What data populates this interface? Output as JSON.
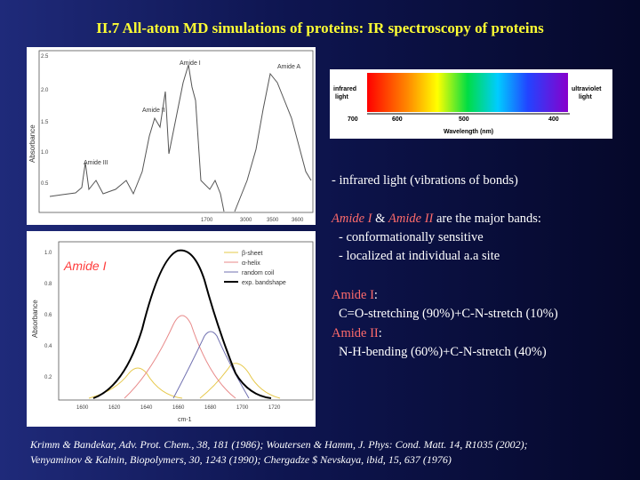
{
  "title": "II.7 All-atom MD simulations of proteins: IR spectroscopy of proteins",
  "spectrum": {
    "left_label": [
      "infrared",
      "light"
    ],
    "right_label": [
      "ultraviolet",
      "light"
    ],
    "ticks": [
      "700",
      "600",
      "500",
      "400"
    ],
    "axis_label": "Wavelength (nm)"
  },
  "chart_top": {
    "ylabel": "Absorbance",
    "yticks": [
      "2.5",
      "2.0",
      "1.5",
      "1.0",
      "0.5"
    ],
    "xticks": [
      "1700",
      "3000",
      "3500",
      "3600"
    ],
    "peak_labels": [
      "Amide I",
      "Amide A",
      "Amide II",
      "Amide III"
    ]
  },
  "chart_bottom": {
    "ylabel": "Absorbance",
    "xlabel": "cm-1",
    "yticks": [
      "1.0",
      "0.8",
      "0.6",
      "0.4",
      "0.2"
    ],
    "xticks": [
      "1600",
      "1620",
      "1640",
      "1660",
      "1680",
      "1700",
      "1720"
    ],
    "overlay_label": "Amide I",
    "legend": [
      "β-sheet",
      "α-helix",
      "random coil",
      "exp. bandshape"
    ]
  },
  "text": {
    "line1": "- infrared light (vibrations of bonds)",
    "amide1": "Amide I",
    "amp": " & ",
    "amide2": "Amide II",
    "major": " are the major bands:",
    "sub1": "- conformationally sensitive",
    "sub2": "- localized at individual a.a site",
    "a1_label": "Amide I",
    "a1_colon": ":",
    "a1_desc": "C=O-stretching (90%)+C-N-stretch (10%)",
    "a2_label": "Amide II",
    "a2_colon": ":",
    "a2_desc": "N-H-bending (60%)+C-N-stretch (40%)"
  },
  "references": {
    "line1": "Krimm & Bandekar, Adv. Prot. Chem., 38, 181 (1986); Woutersen & Hamm, J. Phys: Cond. Matt. 14, R1035 (2002);",
    "line2": "Venyaminov & Kalnin, Biopolymers, 30, 1243 (1990); Chergadze $ Nevskaya, ibid, 15, 637 (1976)"
  }
}
